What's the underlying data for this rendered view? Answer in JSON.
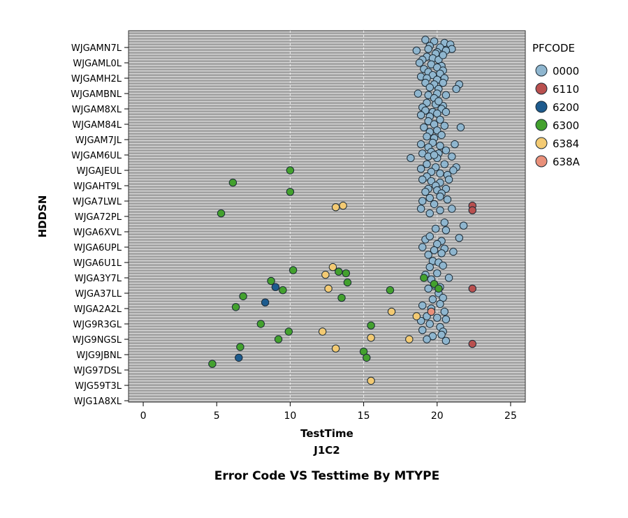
{
  "chart_data": {
    "type": "scatter",
    "title": "Error Code VS Testtime By MTYPE",
    "xlabel": "TestTime",
    "xsublabel": "J1C2",
    "ylabel": "HDDSN",
    "xlim": [
      -1,
      26
    ],
    "xticks": [
      0,
      5,
      10,
      15,
      20,
      25
    ],
    "reference_lines_x": [
      10,
      15,
      20
    ],
    "grid": true,
    "legend_position": "right",
    "legend_title": "PFCODE",
    "categories": [
      "WJGAMN7L",
      "WJGAML0L",
      "WJGAMH2L",
      "WJGAMBNL",
      "WJGAM8XL",
      "WJGAM84L",
      "WJGAM7JL",
      "WJGAM6UL",
      "WJGAJEUL",
      "WJGAHT9L",
      "WJGA7LWL",
      "WJGA72PL",
      "WJGA6XVL",
      "WJGA6UPL",
      "WJGA6U1L",
      "WJGA3Y7L",
      "WJGA37LL",
      "WJGA2A2L",
      "WJG9R3GL",
      "WJG9NGSL",
      "WJG9JBNL",
      "WJG97DSL",
      "WJG59T3L",
      "WJG1A8XL"
    ],
    "series": [
      {
        "name": "0000",
        "color": "#8fb6cf",
        "points": [
          [
            19.2,
            -0.5
          ],
          [
            19.8,
            -0.4
          ],
          [
            20.5,
            -0.3
          ],
          [
            20.9,
            -0.2
          ],
          [
            19.5,
            -0.1
          ],
          [
            20.2,
            0.0
          ],
          [
            18.6,
            0.2
          ],
          [
            19.4,
            0.1
          ],
          [
            20.0,
            0.3
          ],
          [
            21.0,
            0.1
          ],
          [
            20.6,
            0.2
          ],
          [
            19.9,
            0.4
          ],
          [
            19.3,
            0.6
          ],
          [
            19.7,
            0.7
          ],
          [
            20.1,
            0.8
          ],
          [
            20.4,
            0.5
          ],
          [
            19.0,
            0.8
          ],
          [
            18.8,
            1.0
          ],
          [
            19.6,
            1.1
          ],
          [
            20.3,
            1.2
          ],
          [
            19.1,
            1.4
          ],
          [
            20.0,
            1.3
          ],
          [
            19.4,
            1.6
          ],
          [
            20.4,
            1.5
          ],
          [
            19.7,
            1.8
          ],
          [
            20.2,
            1.7
          ],
          [
            18.9,
            1.9
          ],
          [
            19.3,
            2.0
          ],
          [
            20.0,
            2.1
          ],
          [
            20.5,
            2.0
          ],
          [
            19.2,
            2.3
          ],
          [
            19.8,
            2.4
          ],
          [
            20.4,
            2.3
          ],
          [
            21.5,
            2.4
          ],
          [
            19.5,
            2.6
          ],
          [
            20.1,
            2.7
          ],
          [
            21.3,
            2.7
          ],
          [
            18.7,
            3.0
          ],
          [
            19.4,
            3.1
          ],
          [
            20.0,
            3.0
          ],
          [
            20.6,
            3.1
          ],
          [
            19.8,
            3.3
          ],
          [
            19.3,
            3.6
          ],
          [
            19.9,
            3.7
          ],
          [
            20.4,
            3.8
          ],
          [
            19.0,
            3.9
          ],
          [
            20.1,
            3.5
          ],
          [
            19.2,
            4.1
          ],
          [
            19.7,
            4.2
          ],
          [
            20.3,
            4.0
          ],
          [
            18.9,
            4.4
          ],
          [
            19.5,
            4.5
          ],
          [
            20.0,
            4.3
          ],
          [
            20.6,
            4.2
          ],
          [
            19.4,
            4.8
          ],
          [
            20.2,
            4.7
          ],
          [
            19.8,
            5.0
          ],
          [
            20.5,
            5.1
          ],
          [
            19.1,
            5.2
          ],
          [
            21.6,
            5.2
          ],
          [
            19.5,
            5.5
          ],
          [
            20.0,
            5.4
          ],
          [
            19.3,
            5.8
          ],
          [
            20.3,
            5.7
          ],
          [
            19.8,
            5.9
          ],
          [
            18.9,
            6.3
          ],
          [
            19.7,
            6.2
          ],
          [
            20.2,
            6.4
          ],
          [
            21.2,
            6.3
          ],
          [
            19.4,
            6.5
          ],
          [
            19.0,
            6.9
          ],
          [
            19.6,
            6.8
          ],
          [
            20.1,
            6.9
          ],
          [
            20.6,
            6.7
          ],
          [
            19.4,
            7.1
          ],
          [
            20.0,
            7.2
          ],
          [
            18.2,
            7.2
          ],
          [
            19.8,
            7.0
          ],
          [
            21.0,
            7.1
          ],
          [
            19.3,
            7.6
          ],
          [
            19.9,
            7.8
          ],
          [
            20.5,
            7.6
          ],
          [
            18.9,
            7.9
          ],
          [
            21.3,
            7.8
          ],
          [
            19.6,
            8.1
          ],
          [
            20.2,
            8.2
          ],
          [
            21.1,
            8.0
          ],
          [
            19.3,
            8.4
          ],
          [
            20.7,
            8.3
          ],
          [
            19.0,
            8.6
          ],
          [
            19.6,
            8.7
          ],
          [
            20.2,
            8.8
          ],
          [
            20.8,
            8.6
          ],
          [
            19.9,
            9.0
          ],
          [
            19.4,
            9.2
          ],
          [
            20.0,
            9.3
          ],
          [
            20.6,
            9.2
          ],
          [
            19.2,
            9.4
          ],
          [
            20.3,
            9.5
          ],
          [
            19.5,
            9.8
          ],
          [
            20.2,
            9.7
          ],
          [
            19.0,
            10.0
          ],
          [
            20.7,
            9.9
          ],
          [
            19.8,
            10.2
          ],
          [
            18.9,
            10.5
          ],
          [
            20.2,
            10.6
          ],
          [
            21.0,
            10.5
          ],
          [
            19.5,
            10.8
          ],
          [
            20.5,
            11.4
          ],
          [
            21.8,
            11.6
          ],
          [
            19.9,
            11.8
          ],
          [
            20.6,
            11.9
          ],
          [
            19.2,
            12.5
          ],
          [
            20.3,
            12.6
          ],
          [
            21.5,
            12.4
          ],
          [
            20.0,
            12.8
          ],
          [
            19.5,
            12.3
          ],
          [
            19.0,
            13.0
          ],
          [
            20.5,
            13.1
          ],
          [
            21.1,
            13.3
          ],
          [
            19.8,
            13.2
          ],
          [
            19.4,
            13.5
          ],
          [
            20.3,
            13.4
          ],
          [
            19.7,
            13.9
          ],
          [
            20.1,
            14.0
          ],
          [
            20.4,
            14.2
          ],
          [
            19.5,
            14.3
          ],
          [
            19.2,
            14.8
          ],
          [
            20.0,
            14.7
          ],
          [
            20.8,
            15.0
          ],
          [
            19.6,
            15.1
          ],
          [
            19.8,
            15.5
          ],
          [
            20.2,
            15.6
          ],
          [
            19.4,
            15.7
          ],
          [
            20.1,
            16.0
          ],
          [
            19.7,
            16.4
          ],
          [
            20.4,
            16.3
          ],
          [
            19.0,
            16.8
          ],
          [
            20.2,
            16.7
          ],
          [
            19.6,
            17.0
          ],
          [
            20.5,
            17.2
          ],
          [
            19.3,
            17.5
          ],
          [
            20.0,
            17.6
          ],
          [
            18.9,
            17.8
          ],
          [
            20.6,
            17.7
          ],
          [
            19.5,
            18.0
          ],
          [
            20.2,
            18.2
          ],
          [
            19.0,
            18.4
          ],
          [
            20.4,
            18.5
          ],
          [
            19.7,
            18.8
          ],
          [
            20.3,
            18.7
          ],
          [
            19.3,
            19.0
          ],
          [
            20.6,
            19.1
          ]
        ]
      },
      {
        "name": "6110",
        "color": "#b9504f",
        "points": [
          [
            22.4,
            10.3
          ],
          [
            22.4,
            10.6
          ],
          [
            22.4,
            15.7
          ],
          [
            22.4,
            19.3
          ]
        ]
      },
      {
        "name": "6200",
        "color": "#1d5b8e",
        "points": [
          [
            9.0,
            15.6
          ],
          [
            8.3,
            16.6
          ],
          [
            6.5,
            20.2
          ]
        ]
      },
      {
        "name": "6300",
        "color": "#43a12e",
        "points": [
          [
            10.0,
            8.0
          ],
          [
            6.1,
            8.8
          ],
          [
            10.0,
            9.4
          ],
          [
            5.3,
            10.8
          ],
          [
            10.2,
            14.5
          ],
          [
            13.3,
            14.6
          ],
          [
            13.8,
            14.7
          ],
          [
            8.7,
            15.2
          ],
          [
            13.9,
            15.3
          ],
          [
            9.5,
            15.8
          ],
          [
            6.8,
            16.2
          ],
          [
            13.5,
            16.3
          ],
          [
            16.8,
            15.8
          ],
          [
            6.3,
            16.9
          ],
          [
            8.0,
            18.0
          ],
          [
            15.5,
            18.1
          ],
          [
            9.9,
            18.5
          ],
          [
            9.2,
            19.0
          ],
          [
            6.6,
            19.5
          ],
          [
            15.0,
            19.8
          ],
          [
            15.2,
            20.2
          ],
          [
            4.7,
            20.6
          ],
          [
            19.1,
            15.0
          ],
          [
            19.8,
            15.4
          ],
          [
            20.1,
            15.7
          ]
        ]
      },
      {
        "name": "6384",
        "color": "#f3ca73",
        "points": [
          [
            13.1,
            10.4
          ],
          [
            13.6,
            10.3
          ],
          [
            12.9,
            14.3
          ],
          [
            12.4,
            14.8
          ],
          [
            12.6,
            15.7
          ],
          [
            16.9,
            17.2
          ],
          [
            18.6,
            17.5
          ],
          [
            12.2,
            18.5
          ],
          [
            15.5,
            18.9
          ],
          [
            18.1,
            19.0
          ],
          [
            13.1,
            19.6
          ],
          [
            15.5,
            21.7
          ]
        ]
      },
      {
        "name": "638A",
        "color": "#e9907a",
        "points": [
          [
            19.6,
            17.2
          ]
        ]
      }
    ]
  }
}
